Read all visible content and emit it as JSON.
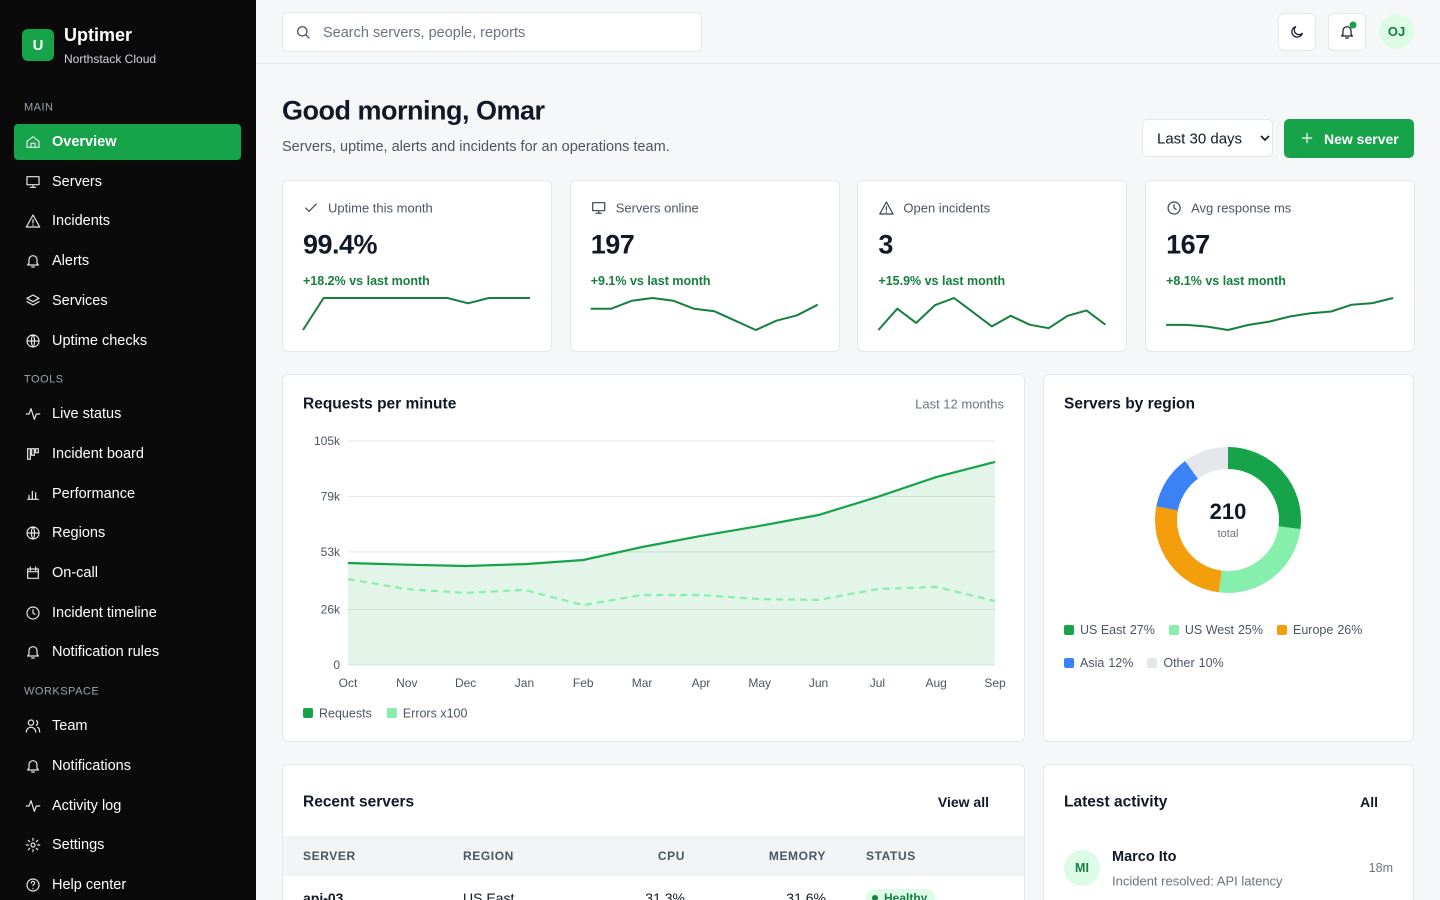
{
  "sidebar": {
    "logo": "U",
    "brand": "Uptimer",
    "org": "Northstack Cloud",
    "sections": [
      {
        "title": "MAIN",
        "items": [
          {
            "label": "Overview",
            "active": true
          },
          {
            "label": "Servers"
          },
          {
            "label": "Incidents"
          },
          {
            "label": "Alerts"
          },
          {
            "label": "Services"
          },
          {
            "label": "Uptime checks"
          }
        ]
      },
      {
        "title": "TOOLS",
        "items": [
          {
            "label": "Live status"
          },
          {
            "label": "Incident board"
          },
          {
            "label": "Performance"
          },
          {
            "label": "Regions"
          },
          {
            "label": "On-call"
          },
          {
            "label": "Incident timeline"
          },
          {
            "label": "Notification rules"
          }
        ]
      },
      {
        "title": "WORKSPACE",
        "items": [
          {
            "label": "Team"
          },
          {
            "label": "Notifications"
          },
          {
            "label": "Activity log"
          },
          {
            "label": "Settings"
          },
          {
            "label": "Help center"
          }
        ]
      }
    ]
  },
  "topbar": {
    "search_placeholder": "Search servers, people, reports",
    "avatar": "OJ"
  },
  "header": {
    "title": "Good morning, Omar",
    "subtitle": "Servers, uptime, alerts and incidents for an operations team.",
    "range": "Last 30 days",
    "button": "New server"
  },
  "kpis": [
    {
      "label": "Uptime this month",
      "value": "99.4%",
      "delta": "+18.2% vs last month",
      "color": "#15803d",
      "spark": [
        20,
        92,
        92,
        92,
        92,
        92,
        92,
        92,
        80,
        92,
        92,
        92
      ]
    },
    {
      "label": "Servers online",
      "value": "197",
      "delta": "+9.1% vs last month",
      "color": "#15803d",
      "spark": [
        52,
        52,
        58,
        60,
        58,
        52,
        50,
        43,
        36,
        43,
        47,
        55
      ]
    },
    {
      "label": "Open incidents",
      "value": "3",
      "delta": "+15.9% vs last month",
      "color": "#15803d",
      "spark": [
        40,
        52,
        44,
        54,
        58,
        50,
        42,
        48,
        43,
        41,
        48,
        51,
        43
      ]
    },
    {
      "label": "Avg response ms",
      "value": "167",
      "delta": "+8.1% vs last month",
      "color": "#15803d",
      "spark": [
        40,
        40,
        39,
        37,
        40,
        42,
        45,
        47,
        48,
        52,
        53,
        56
      ]
    }
  ],
  "requests_chart": {
    "type": "line",
    "title": "Requests per minute",
    "subtitle": "Last 12 months",
    "categories": [
      "Oct",
      "Nov",
      "Dec",
      "Jan",
      "Feb",
      "Mar",
      "Apr",
      "May",
      "Jun",
      "Jul",
      "Aug",
      "Sep"
    ],
    "series": [
      {
        "name": "Requests",
        "color": "#16a34a",
        "area": true,
        "dashed": false,
        "values": [
          47800,
          47000,
          46400,
          47300,
          49200,
          55300,
          60500,
          65200,
          70300,
          78800,
          88100,
          95200
        ]
      },
      {
        "name": "Errors x100",
        "color": "#86efac",
        "area": false,
        "dashed": true,
        "values": [
          40300,
          35600,
          33800,
          35200,
          28100,
          32800,
          32800,
          30900,
          30500,
          35600,
          36600,
          30000
        ]
      }
    ],
    "ylim": [
      0,
      105000
    ],
    "yticks": [
      {
        "value": 105000,
        "label": "105k"
      },
      {
        "value": 79000,
        "label": "79k"
      },
      {
        "value": 53000,
        "label": "53k"
      },
      {
        "value": 26000,
        "label": "26k"
      },
      0
    ],
    "grid": true
  },
  "region_chart": {
    "type": "donut",
    "title": "Servers by region",
    "total": "210",
    "total_label": "total",
    "categories": [
      "US East",
      "US West",
      "Europe",
      "Asia",
      "Other"
    ],
    "values": [
      27,
      25,
      26,
      12,
      10
    ],
    "value_labels": [
      "27%",
      "25%",
      "26%",
      "12%",
      "10%"
    ],
    "colors": [
      "#16a34a",
      "#86efac",
      "#f59e0b",
      "#3b82f6",
      "#e5e7eb"
    ]
  },
  "servers_table": {
    "title": "Recent servers",
    "action": "View all",
    "columns": [
      "SERVER",
      "REGION",
      "CPU",
      "MEMORY",
      "STATUS"
    ],
    "rows": [
      [
        "api-03",
        "US East",
        "31.3%",
        "31.6%",
        "Healthy"
      ]
    ]
  },
  "activity": {
    "title": "Latest activity",
    "action": "All",
    "items": [
      {
        "initials": "MI",
        "name": "Marco Ito",
        "text": "Incident resolved: API latency",
        "time": "18m"
      }
    ]
  }
}
